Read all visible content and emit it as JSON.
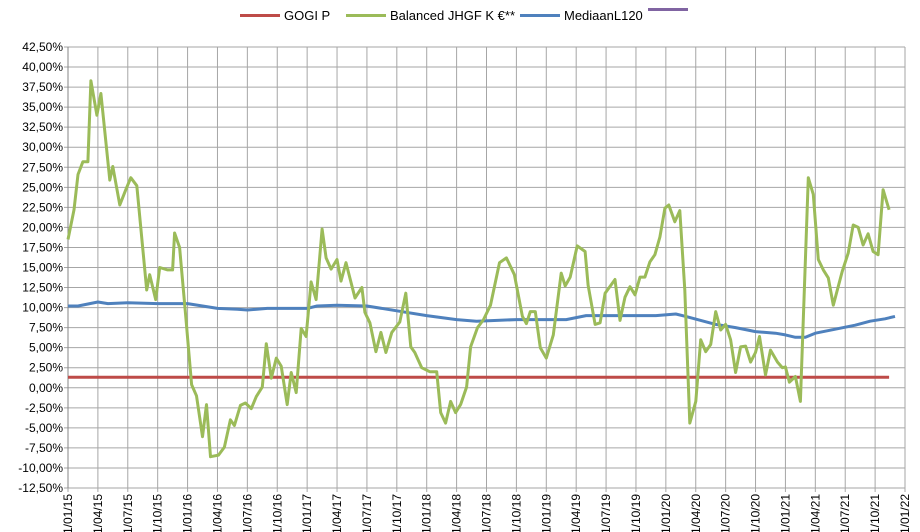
{
  "chart_data": {
    "type": "line",
    "title": "",
    "xlabel": "",
    "ylabel": "",
    "ylim": [
      -12.5,
      42.5
    ],
    "y_step": 2.5,
    "x_unit": "months since 1/01/15",
    "xlim": [
      0,
      84
    ],
    "grid": true,
    "legend_position": "top",
    "yticks": [
      "-12,50%",
      "-10,00%",
      "-7,50%",
      "-5,00%",
      "-2,50%",
      "0,00%",
      "2,50%",
      "5,00%",
      "7,50%",
      "10,00%",
      "12,50%",
      "15,00%",
      "17,50%",
      "20,00%",
      "22,50%",
      "25,00%",
      "27,50%",
      "30,00%",
      "32,50%",
      "35,00%",
      "37,50%",
      "40,00%",
      "42,50%"
    ],
    "xticks": [
      "1/01/15",
      "1/04/15",
      "1/07/15",
      "1/10/15",
      "1/01/16",
      "1/04/16",
      "1/07/16",
      "1/10/16",
      "1/01/17",
      "1/04/17",
      "1/07/17",
      "1/10/17",
      "1/01/18",
      "1/04/18",
      "1/07/18",
      "1/10/18",
      "1/01/19",
      "1/04/19",
      "1/07/19",
      "1/10/19",
      "1/01/20",
      "1/04/20",
      "1/07/20",
      "1/10/20",
      "1/01/21",
      "1/04/21",
      "1/07/21",
      "1/10/21",
      "1/01/22"
    ],
    "series": [
      {
        "name": "GOGI P",
        "color": "#BE4B48",
        "x": [
          0,
          82.4
        ],
        "y": [
          1.3,
          1.3
        ]
      },
      {
        "name": "Balanced JHGF K €**",
        "color": "#9BBB59",
        "x": [
          0,
          0.6,
          1,
          1.5,
          2,
          2.3,
          2.9,
          3.3,
          4.2,
          4.5,
          5.2,
          5.8,
          6.3,
          6.9,
          7.9,
          8.2,
          8.8,
          9.2,
          10,
          10.5,
          10.7,
          11.2,
          11.8,
          12.4,
          12.9,
          13.5,
          13.9,
          14.3,
          15.1,
          15.7,
          16.3,
          16.7,
          17.3,
          17.8,
          18.4,
          18.9,
          19.5,
          19.9,
          20.4,
          20.9,
          21.4,
          22,
          22.4,
          22.9,
          23.4,
          23.9,
          24.4,
          24.9,
          25.5,
          25.9,
          26.4,
          27,
          27.4,
          27.9,
          28.8,
          29.5,
          29.8,
          30.3,
          30.9,
          31.4,
          31.9,
          32.5,
          33.3,
          33.9,
          34.4,
          34.8,
          35.5,
          36.3,
          37,
          37.4,
          37.9,
          38.4,
          38.9,
          39.4,
          40,
          40.4,
          41.1,
          41.7,
          42.4,
          43.3,
          44,
          44.8,
          45.6,
          46,
          46.4,
          46.9,
          47.4,
          48,
          48.7,
          49.5,
          49.9,
          50.4,
          51.1,
          51.9,
          52.2,
          52.9,
          53.4,
          53.9,
          54.9,
          55.4,
          55.9,
          56.4,
          56.9,
          57.4,
          57.9,
          58.4,
          58.9,
          59.4,
          59.9,
          60.3,
          60.9,
          61.4,
          61.9,
          62.4,
          63,
          63.5,
          64,
          64.5,
          65,
          65.5,
          66,
          66.5,
          67,
          67.5,
          68,
          68.5,
          69,
          69.4,
          70,
          70.5,
          71.2,
          71.7,
          72,
          72.4,
          73,
          73.5,
          74.3,
          74.8,
          75.3,
          75.8,
          76.3,
          76.8,
          77.7,
          78.3,
          78.8,
          79.3,
          79.8,
          80.3,
          80.8,
          81.3,
          81.8,
          82.4
        ],
        "y": [
          18.5,
          22.2,
          26.6,
          28.2,
          28.2,
          38.3,
          34,
          36.7,
          25.9,
          27.6,
          22.8,
          24.7,
          26.2,
          25.2,
          12.2,
          14.1,
          11,
          15,
          14.7,
          14.7,
          19.3,
          17.5,
          9.1,
          0.4,
          -1,
          -6.1,
          -2.1,
          -8.6,
          -8.4,
          -7.4,
          -4,
          -4.7,
          -2.2,
          -1.9,
          -2.6,
          -1.1,
          0.1,
          5.5,
          1.2,
          3.7,
          2.7,
          -2.1,
          1.9,
          -0.6,
          7.4,
          6.4,
          13.2,
          11,
          19.8,
          16.2,
          14.8,
          16,
          13.3,
          15.6,
          11.2,
          12.5,
          9.4,
          8.1,
          4.5,
          6.9,
          4.4,
          6.9,
          8.2,
          11.8,
          5.1,
          4.4,
          2.5,
          2,
          2,
          -3.1,
          -4.4,
          -1.7,
          -3.1,
          -2.1,
          0.1,
          5.1,
          7.5,
          8.5,
          10.3,
          15.6,
          16.2,
          14.1,
          8.9,
          8,
          9.5,
          9.5,
          5,
          3.7,
          6.6,
          14.3,
          12.7,
          13.8,
          17.7,
          17,
          12.8,
          7.9,
          8.1,
          11.8,
          13.5,
          8.4,
          11.3,
          12.6,
          11.6,
          13.8,
          13.8,
          15.7,
          16.6,
          18.8,
          22.4,
          22.8,
          20.7,
          22.1,
          12.2,
          -4.4,
          -1.7,
          6,
          4.5,
          5.4,
          9.5,
          7.2,
          7.9,
          6,
          1.9,
          5.1,
          5.2,
          3.2,
          4.4,
          6.4,
          1.6,
          4.7,
          3.2,
          2.5,
          2.6,
          0.7,
          1.4,
          -1.7,
          26.2,
          24.1,
          16,
          14.7,
          13.7,
          10.3,
          14.5,
          16.8,
          20.3,
          20,
          17.8,
          19.2,
          17,
          16.6,
          24.7,
          22.2
        ]
      },
      {
        "name": "MediaanL120",
        "color": "#4F81BD",
        "x": [
          0,
          1,
          3,
          4,
          6,
          9,
          12,
          15,
          17,
          18,
          20,
          24,
          25,
          27,
          30,
          33,
          36,
          39,
          41,
          45,
          48,
          50,
          52,
          55,
          59,
          61,
          62,
          65,
          67,
          69,
          71,
          72,
          73,
          74,
          75,
          77,
          79,
          80.5,
          82,
          83
        ],
        "y": [
          10.2,
          10.2,
          10.7,
          10.5,
          10.6,
          10.5,
          10.5,
          9.9,
          9.8,
          9.7,
          9.9,
          9.9,
          10.2,
          10.3,
          10.2,
          9.6,
          9.0,
          8.5,
          8.3,
          8.5,
          8.5,
          8.5,
          9.0,
          9.0,
          9.0,
          9.2,
          8.9,
          7.9,
          7.5,
          7.0,
          6.8,
          6.6,
          6.3,
          6.3,
          6.8,
          7.3,
          7.8,
          8.3,
          8.6,
          8.9
        ]
      },
      {
        "name": "",
        "color": "#8064A2",
        "x": [],
        "y": []
      }
    ]
  }
}
